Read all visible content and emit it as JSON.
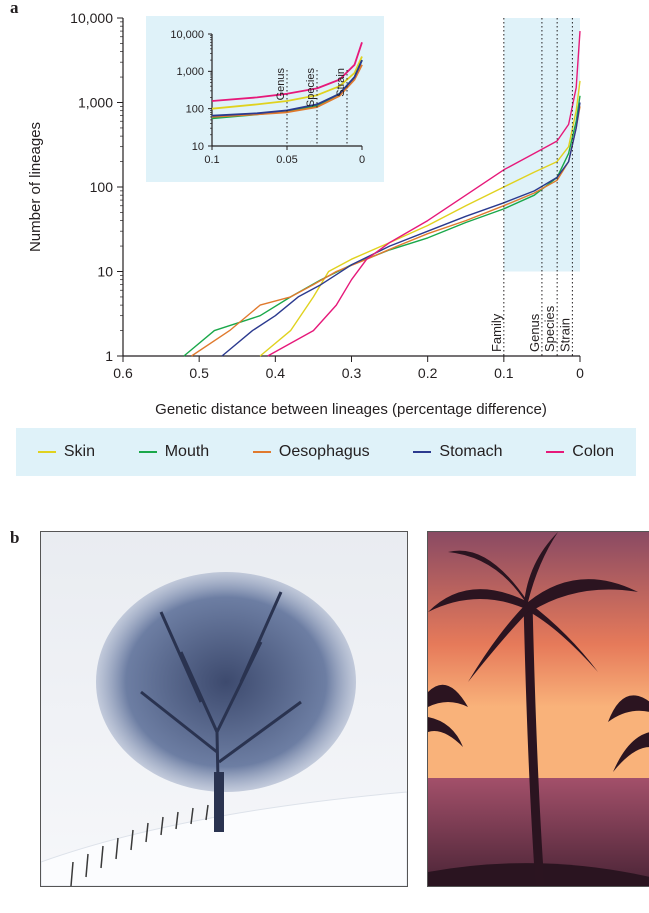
{
  "panels": {
    "a": "a",
    "b": "b"
  },
  "colors": {
    "skin": "#e0d21f",
    "mouth": "#1aa84a",
    "oesophagus": "#e07a2e",
    "stomach": "#2b3a8f",
    "colon": "#e6197a",
    "shade": "#dff2f9"
  },
  "chart_data": [
    {
      "type": "line",
      "xlabel": "Genetic distance between lineages (percentage difference)",
      "ylabel": "Number of lineages",
      "xlim": [
        0.6,
        0
      ],
      "ylim": [
        1,
        10000
      ],
      "yscale": "log",
      "x_ticks": [
        "0.6",
        "0.5",
        "0.4",
        "0.3",
        "0.2",
        "0.1",
        "0"
      ],
      "y_ticks": [
        "1",
        "10",
        "100",
        "1,000",
        "10,000"
      ],
      "annotations": [
        {
          "label": "Family",
          "x": 0.1
        },
        {
          "label": "Genus",
          "x": 0.05
        },
        {
          "label": "Species",
          "x": 0.03
        },
        {
          "label": "Strain",
          "x": 0.01
        }
      ],
      "legend": [
        "Skin",
        "Mouth",
        "Oesophagus",
        "Stomach",
        "Colon"
      ],
      "series": [
        {
          "name": "Skin",
          "color": "#e0d21f",
          "points": [
            [
              0.42,
              1
            ],
            [
              0.38,
              2
            ],
            [
              0.35,
              5
            ],
            [
              0.33,
              10
            ],
            [
              0.3,
              14
            ],
            [
              0.25,
              22
            ],
            [
              0.2,
              35
            ],
            [
              0.15,
              60
            ],
            [
              0.1,
              100
            ],
            [
              0.06,
              150
            ],
            [
              0.03,
              200
            ],
            [
              0.015,
              300
            ],
            [
              0.005,
              800
            ],
            [
              0,
              1800
            ]
          ]
        },
        {
          "name": "Mouth",
          "color": "#1aa84a",
          "points": [
            [
              0.52,
              1
            ],
            [
              0.48,
              2
            ],
            [
              0.42,
              3
            ],
            [
              0.38,
              5
            ],
            [
              0.34,
              8
            ],
            [
              0.3,
              12
            ],
            [
              0.25,
              18
            ],
            [
              0.2,
              25
            ],
            [
              0.15,
              38
            ],
            [
              0.1,
              55
            ],
            [
              0.06,
              80
            ],
            [
              0.03,
              130
            ],
            [
              0.015,
              250
            ],
            [
              0.005,
              600
            ],
            [
              0,
              1200
            ]
          ]
        },
        {
          "name": "Oesophagus",
          "color": "#e07a2e",
          "points": [
            [
              0.51,
              1
            ],
            [
              0.46,
              2
            ],
            [
              0.42,
              4
            ],
            [
              0.38,
              5
            ],
            [
              0.35,
              7
            ],
            [
              0.32,
              10
            ],
            [
              0.28,
              14
            ],
            [
              0.24,
              20
            ],
            [
              0.2,
              28
            ],
            [
              0.15,
              40
            ],
            [
              0.1,
              60
            ],
            [
              0.06,
              85
            ],
            [
              0.03,
              120
            ],
            [
              0.015,
              200
            ],
            [
              0.005,
              500
            ],
            [
              0,
              900
            ]
          ]
        },
        {
          "name": "Stomach",
          "color": "#2b3a8f",
          "points": [
            [
              0.47,
              1
            ],
            [
              0.43,
              2
            ],
            [
              0.4,
              3
            ],
            [
              0.37,
              5
            ],
            [
              0.34,
              7
            ],
            [
              0.3,
              12
            ],
            [
              0.25,
              20
            ],
            [
              0.2,
              30
            ],
            [
              0.15,
              45
            ],
            [
              0.1,
              65
            ],
            [
              0.06,
              90
            ],
            [
              0.03,
              130
            ],
            [
              0.015,
              200
            ],
            [
              0.005,
              500
            ],
            [
              0,
              1000
            ]
          ]
        },
        {
          "name": "Colon",
          "color": "#e6197a",
          "points": [
            [
              0.41,
              1
            ],
            [
              0.35,
              2
            ],
            [
              0.32,
              4
            ],
            [
              0.3,
              8
            ],
            [
              0.28,
              14
            ],
            [
              0.25,
              22
            ],
            [
              0.2,
              40
            ],
            [
              0.15,
              80
            ],
            [
              0.1,
              160
            ],
            [
              0.06,
              250
            ],
            [
              0.03,
              350
            ],
            [
              0.015,
              550
            ],
            [
              0.005,
              1500
            ],
            [
              0,
              7000
            ]
          ]
        }
      ]
    },
    {
      "type": "line",
      "inset": true,
      "xlim": [
        0.1,
        0
      ],
      "ylim": [
        10,
        10000
      ],
      "yscale": "log",
      "x_ticks": [
        "0.1",
        "0.05",
        "0"
      ],
      "y_ticks": [
        "10",
        "100",
        "1,000",
        "10,000"
      ],
      "annotations": [
        {
          "label": "Genus",
          "x": 0.05
        },
        {
          "label": "Species",
          "x": 0.03
        },
        {
          "label": "Strain",
          "x": 0.01
        }
      ],
      "series": [
        {
          "name": "Skin",
          "color": "#e0d21f",
          "points": [
            [
              0.1,
              100
            ],
            [
              0.07,
              130
            ],
            [
              0.05,
              160
            ],
            [
              0.03,
              230
            ],
            [
              0.015,
              400
            ],
            [
              0.005,
              900
            ],
            [
              0,
              2500
            ]
          ]
        },
        {
          "name": "Mouth",
          "color": "#1aa84a",
          "points": [
            [
              0.1,
              55
            ],
            [
              0.07,
              70
            ],
            [
              0.05,
              85
            ],
            [
              0.03,
              120
            ],
            [
              0.015,
              250
            ],
            [
              0.005,
              700
            ],
            [
              0,
              2000
            ]
          ]
        },
        {
          "name": "Oesophagus",
          "color": "#e07a2e",
          "points": [
            [
              0.1,
              60
            ],
            [
              0.07,
              70
            ],
            [
              0.05,
              80
            ],
            [
              0.03,
              110
            ],
            [
              0.015,
              220
            ],
            [
              0.005,
              600
            ],
            [
              0,
              1500
            ]
          ]
        },
        {
          "name": "Stomach",
          "color": "#2b3a8f",
          "points": [
            [
              0.1,
              65
            ],
            [
              0.07,
              75
            ],
            [
              0.05,
              90
            ],
            [
              0.03,
              130
            ],
            [
              0.015,
              250
            ],
            [
              0.005,
              700
            ],
            [
              0,
              2000
            ]
          ]
        },
        {
          "name": "Colon",
          "color": "#e6197a",
          "points": [
            [
              0.1,
              160
            ],
            [
              0.07,
              200
            ],
            [
              0.05,
              250
            ],
            [
              0.03,
              350
            ],
            [
              0.015,
              600
            ],
            [
              0.005,
              1500
            ],
            [
              0,
              6000
            ]
          ]
        }
      ]
    }
  ],
  "photos": [
    {
      "name": "snowy-tree-photo"
    },
    {
      "name": "palm-sunset-photo"
    }
  ]
}
